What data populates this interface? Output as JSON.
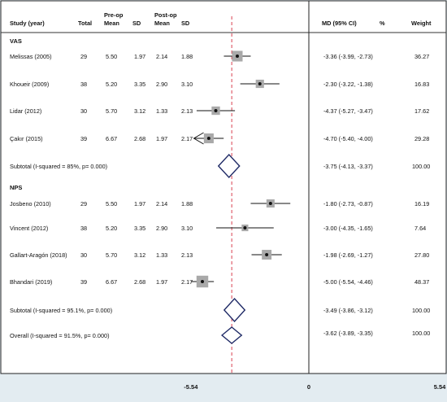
{
  "header": {
    "study": "Study (year)",
    "total": "Total",
    "preop_l1": "Pre-op",
    "preop_l2": "Mean",
    "sd1": "SD",
    "postop_l1": "Post-op",
    "postop_l2": "Mean",
    "sd2": "SD",
    "md": "MD (95% CI)",
    "md_unit": "%",
    "weight": "Weight"
  },
  "colors": {
    "background": "#e3ecf1",
    "panel": "#ffffff",
    "diamond": "#1f2a66",
    "overall_line": "#d9404f",
    "box": "#a9a9a9"
  },
  "chart_data": {
    "type": "forest",
    "axis": {
      "ticks": [
        "-5.54",
        "0",
        "5.54"
      ],
      "xlim": [
        -5.54,
        5.54
      ]
    },
    "overall_reference": -3.62,
    "groups": [
      {
        "name": "VAS",
        "studies": [
          {
            "label": "Melissas (2005)",
            "total": "29",
            "pre_mean": "5.50",
            "sd1": "1.97",
            "post_mean": "2.14",
            "sd2": "1.88",
            "md_text": "-3.36 (-3.99, -2.73)",
            "weight_text": "36.27",
            "md": -3.36,
            "lo": -3.99,
            "hi": -2.73,
            "weight": 36.27
          },
          {
            "label": "Khoueir (2009)",
            "total": "38",
            "pre_mean": "5.20",
            "sd1": "3.35",
            "post_mean": "2.90",
            "sd2": "3.10",
            "md_text": "-2.30 (-3.22, -1.38)",
            "weight_text": "16.83",
            "md": -2.3,
            "lo": -3.22,
            "hi": -1.38,
            "weight": 16.83
          },
          {
            "label": "Lidar (2012)",
            "total": "30",
            "pre_mean": "5.70",
            "sd1": "3.12",
            "post_mean": "1.33",
            "sd2": "2.13",
            "md_text": "-4.37 (-5.27, -3.47)",
            "weight_text": "17.62",
            "md": -4.37,
            "lo": -5.27,
            "hi": -3.47,
            "weight": 17.62
          },
          {
            "label": "Çakır (2015)",
            "total": "39",
            "pre_mean": "6.67",
            "sd1": "2.68",
            "post_mean": "1.97",
            "sd2": "2.17",
            "md_text": "-4.70 (-5.40, -4.00)",
            "weight_text": "29.28",
            "md": -4.7,
            "lo": -5.4,
            "hi": -4.0,
            "weight": 29.28
          }
        ],
        "subtotal": {
          "label": "Subtotal (I-squared = 85%, p= 0.000)",
          "md_text": "-3.75 (-4.13, -3.37)",
          "weight_text": "100.00",
          "md": -3.75,
          "lo": -4.13,
          "hi": -3.37
        }
      },
      {
        "name": "NPS",
        "studies": [
          {
            "label": "Josbeno (2010)",
            "total": "29",
            "pre_mean": "5.50",
            "sd1": "1.97",
            "post_mean": "2.14",
            "sd2": "1.88",
            "md_text": "-1.80 (-2.73, -0.87)",
            "weight_text": "16.19",
            "md": -1.8,
            "lo": -2.73,
            "hi": -0.87,
            "weight": 16.19
          },
          {
            "label": "Vincent (2012)",
            "total": "38",
            "pre_mean": "5.20",
            "sd1": "3.35",
            "post_mean": "2.90",
            "sd2": "3.10",
            "md_text": "-3.00 (-4.35, -1.65)",
            "weight_text": "7.64",
            "md": -3.0,
            "lo": -4.35,
            "hi": -1.65,
            "weight": 7.64
          },
          {
            "label": "Gallart-Aragón (2018)",
            "total": "30",
            "pre_mean": "5.70",
            "sd1": "3.12",
            "post_mean": "1.33",
            "sd2": "2.13",
            "md_text": "-1.98 (-2.69, -1.27)",
            "weight_text": "27.80",
            "md": -1.98,
            "lo": -2.69,
            "hi": -1.27,
            "weight": 27.8
          },
          {
            "label": "Bhandari (2019)",
            "total": "39",
            "pre_mean": "6.67",
            "sd1": "2.68",
            "post_mean": "1.97",
            "sd2": "2.17",
            "md_text": "-5.00 (-5.54, -4.46)",
            "weight_text": "48.37",
            "md": -5.0,
            "lo": -5.54,
            "hi": -4.46,
            "weight": 48.37
          }
        ],
        "subtotal": {
          "label": "Subtotal (I-squared = 95.1%, p= 0.000)",
          "md_text": "-3.49 (-3.86, -3.12)",
          "weight_text": "100.00",
          "md": -3.49,
          "lo": -3.86,
          "hi": -3.12
        }
      }
    ],
    "overall": {
      "label": "Overall (I-squared = 91.5%, p= 0.000)",
      "md_text": "-3.62 (-3.89, -3.35)",
      "weight_text": "100.00",
      "md": -3.62,
      "lo": -3.89,
      "hi": -3.35
    }
  }
}
